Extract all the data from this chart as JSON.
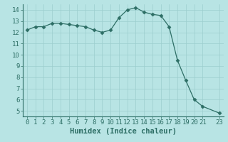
{
  "x": [
    0,
    1,
    2,
    3,
    4,
    5,
    6,
    7,
    8,
    9,
    10,
    11,
    12,
    13,
    14,
    15,
    16,
    17,
    18,
    19,
    20,
    21,
    23
  ],
  "y": [
    12.2,
    12.5,
    12.5,
    12.8,
    12.8,
    12.7,
    12.6,
    12.5,
    12.2,
    12.0,
    12.2,
    13.3,
    14.0,
    14.2,
    13.8,
    13.6,
    13.5,
    12.5,
    9.5,
    7.7,
    6.0,
    5.4,
    4.8
  ],
  "line_color": "#2d6e65",
  "marker": "D",
  "marker_size": 2.5,
  "bg_color": "#b8e4e4",
  "grid_color": "#9ccece",
  "xlabel": "Humidex (Indice chaleur)",
  "xlim": [
    -0.5,
    23.5
  ],
  "ylim": [
    4.5,
    14.5
  ],
  "yticks": [
    5,
    6,
    7,
    8,
    9,
    10,
    11,
    12,
    13,
    14
  ],
  "xticks": [
    0,
    1,
    2,
    3,
    4,
    5,
    6,
    7,
    8,
    9,
    10,
    11,
    12,
    13,
    14,
    15,
    16,
    17,
    18,
    19,
    20,
    21,
    23
  ],
  "xtick_labels": [
    "0",
    "1",
    "2",
    "3",
    "4",
    "5",
    "6",
    "7",
    "8",
    "9",
    "10",
    "11",
    "12",
    "13",
    "14",
    "15",
    "16",
    "17",
    "18",
    "19",
    "20",
    "21",
    "23"
  ],
  "xlabel_fontsize": 7.5,
  "tick_fontsize": 6.5,
  "spine_color": "#2d6e65",
  "line_width": 0.9
}
